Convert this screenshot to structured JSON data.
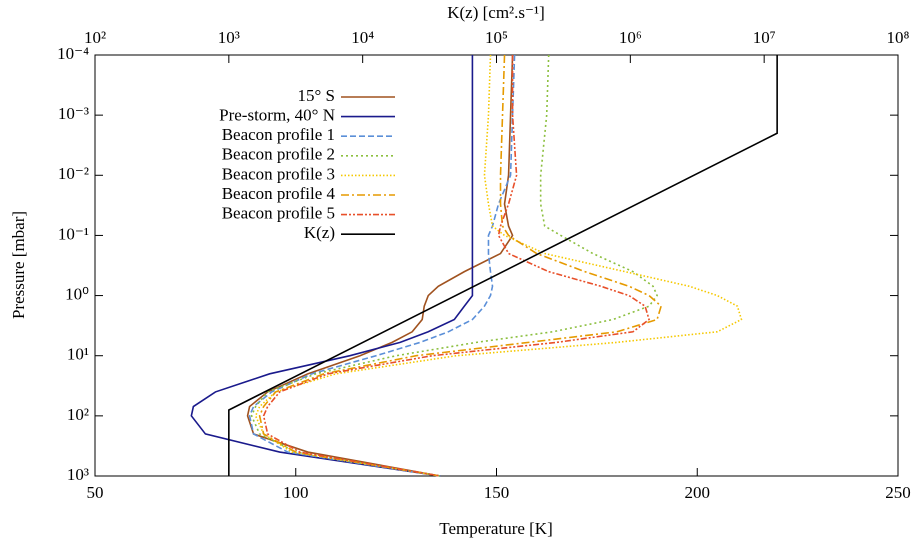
{
  "chart_data": {
    "type": "line",
    "xlabel": "Temperature [K]",
    "ylabel": "Pressure [mbar]",
    "x2label": "K(z) [cm².s⁻¹]",
    "xlim": [
      50,
      250
    ],
    "xticks": [
      50,
      100,
      150,
      200,
      250
    ],
    "ylim": [
      0.0001,
      1000
    ],
    "y_log": true,
    "y_inverted": true,
    "yticks": [
      {
        "value": 0.0001,
        "label": "10⁻⁴"
      },
      {
        "value": 0.001,
        "label": "10⁻³"
      },
      {
        "value": 0.01,
        "label": "10⁻²"
      },
      {
        "value": 0.1,
        "label": "10⁻¹"
      },
      {
        "value": 1,
        "label": "10⁰"
      },
      {
        "value": 10,
        "label": "10¹"
      },
      {
        "value": 100,
        "label": "10²"
      },
      {
        "value": 1000,
        "label": "10³"
      }
    ],
    "x2lim": [
      100,
      100000000
    ],
    "x2_log": true,
    "x2ticks": [
      {
        "value": 100,
        "label": "10²"
      },
      {
        "value": 1000,
        "label": "10³"
      },
      {
        "value": 10000,
        "label": "10⁴"
      },
      {
        "value": 100000,
        "label": "10⁵"
      },
      {
        "value": 1000000,
        "label": "10⁶"
      },
      {
        "value": 10000000,
        "label": "10⁷"
      },
      {
        "value": 100000000,
        "label": "10⁸"
      }
    ],
    "legend": "upper-left",
    "series": [
      {
        "name": "15° S",
        "color": "#a0521f",
        "dash": "none",
        "y": [
          0.0001,
          0.001,
          0.01,
          0.03,
          0.07,
          0.1,
          0.2,
          0.4,
          0.7,
          1,
          1.5,
          2.5,
          4,
          6,
          10,
          20,
          40,
          70,
          100,
          200,
          400,
          1000
        ],
        "x": [
          154,
          153.5,
          153,
          152,
          153,
          154,
          151,
          142,
          135.5,
          133,
          132,
          131.5,
          129,
          124,
          116,
          103,
          93,
          88.5,
          88,
          89.5,
          103,
          136
        ]
      },
      {
        "name": "Pre-storm, 40° N",
        "color": "#1a1a8c",
        "dash": "none",
        "y": [
          0.0001,
          0.001,
          0.01,
          0.03,
          0.07,
          0.1,
          0.2,
          0.4,
          0.7,
          1,
          1.5,
          2.5,
          4,
          6,
          10,
          20,
          40,
          70,
          100,
          200,
          400,
          1000
        ],
        "x": [
          144,
          144,
          144,
          144,
          144,
          144,
          144,
          144,
          144,
          144,
          142,
          139.5,
          133,
          126,
          113.5,
          93.5,
          80,
          74.5,
          74,
          77.5,
          96,
          136
        ]
      },
      {
        "name": "Beacon profile 1",
        "color": "#5b8fd8",
        "dash": "6,3",
        "y": [
          0.0001,
          0.001,
          0.01,
          0.03,
          0.07,
          0.1,
          0.2,
          0.4,
          0.7,
          1,
          1.5,
          2.5,
          4,
          6,
          10,
          20,
          40,
          70,
          100,
          200,
          400,
          1000
        ],
        "x": [
          154.5,
          154,
          153.5,
          150.5,
          149,
          148,
          148,
          148.5,
          149,
          148.5,
          147,
          144,
          138,
          131,
          120,
          104,
          94,
          89.5,
          88.5,
          89.5,
          98,
          136
        ]
      },
      {
        "name": "Beacon profile 2",
        "color": "#8cbf3f",
        "dash": "2,3",
        "y": [
          0.0001,
          0.001,
          0.01,
          0.03,
          0.07,
          0.1,
          0.2,
          0.4,
          0.7,
          1,
          1.5,
          2.5,
          4,
          6,
          10,
          20,
          40,
          70,
          100,
          200,
          400,
          1000
        ],
        "x": [
          163,
          162.5,
          161,
          161,
          162,
          166,
          174,
          184,
          189,
          190,
          188,
          179,
          164,
          145,
          125,
          105,
          93,
          90,
          89,
          91,
          100,
          136
        ]
      },
      {
        "name": "Beacon profile 3",
        "color": "#f5c800",
        "dash": "1.5,2",
        "y": [
          0.0001,
          0.001,
          0.01,
          0.03,
          0.07,
          0.1,
          0.2,
          0.4,
          0.7,
          1,
          1.5,
          2.5,
          4,
          6,
          10,
          20,
          40,
          70,
          100,
          200,
          400,
          1000
        ],
        "x": [
          148.5,
          148,
          147,
          148,
          149,
          152,
          162,
          182,
          198,
          205,
          210,
          211,
          205,
          180,
          140,
          110,
          95,
          91,
          90,
          92,
          99,
          136
        ]
      },
      {
        "name": "Beacon profile 4",
        "color": "#e69a00",
        "dash": "8,3,2,3",
        "y": [
          0.0001,
          0.001,
          0.01,
          0.03,
          0.07,
          0.1,
          0.2,
          0.4,
          0.7,
          1,
          1.5,
          2.5,
          4,
          6,
          10,
          20,
          40,
          70,
          100,
          200,
          400,
          1000
        ],
        "x": [
          152,
          151.5,
          151,
          151,
          151.5,
          153,
          160,
          172,
          183,
          188,
          191,
          190,
          180,
          158,
          130,
          107,
          95,
          92,
          91,
          92,
          100,
          136
        ]
      },
      {
        "name": "Beacon profile 5",
        "color": "#e8502a",
        "dash": "6,2,2,2,2,2",
        "y": [
          0.0001,
          0.001,
          0.01,
          0.03,
          0.07,
          0.1,
          0.2,
          0.4,
          0.7,
          1,
          1.5,
          2.5,
          4,
          6,
          10,
          20,
          40,
          70,
          100,
          200,
          400,
          1000
        ],
        "x": [
          154,
          154,
          155,
          153,
          151,
          150.5,
          153,
          163,
          176,
          183,
          187,
          188,
          184,
          165,
          134,
          108,
          96,
          93,
          92,
          93,
          101,
          136
        ]
      },
      {
        "name": "K(z)",
        "color": "#000000",
        "dash": "none",
        "axis": "x2",
        "y": [
          1000,
          80,
          0.002,
          0.0001
        ],
        "x": [
          1000,
          1000,
          12500000,
          12500000
        ]
      }
    ]
  }
}
